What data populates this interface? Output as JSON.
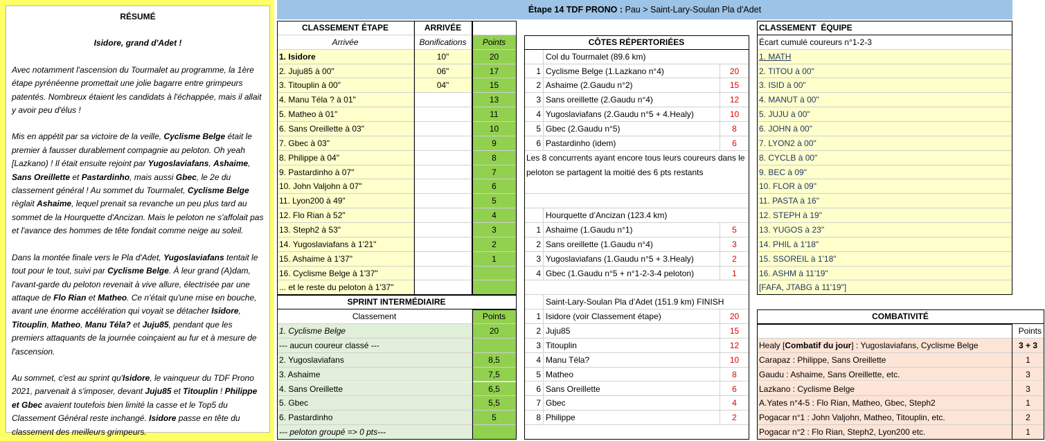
{
  "summary": {
    "title": "RÉSUMÉ",
    "subtitle": "Isidore, grand d'Adet !",
    "paragraphs": [
      [
        "Avec notamment l'ascension du Tourmalet au programme, la 1ère étape pyrénéenne promettait une jolie bagarre entre grimpeurs patentés. Nombreux étaient les candidats à l'échappée, mais il allait y avoir peu d'élus !"
      ],
      [
        "Mis en appétit par sa victoire de la veille,  ",
        {
          "b": "Cyclisme Belge"
        },
        " était le premier à fausser durablement compagnie au peloton. Oh yeah [Lazkano) ! Il était ensuite rejoint par ",
        {
          "b": "Yugoslaviafans"
        },
        ", ",
        {
          "b": "Ashaime"
        },
        ", ",
        {
          "b": "Sans Oreillette"
        },
        " et ",
        {
          "b": "Pastardinho"
        },
        ", mais aussi ",
        {
          "b": "Gbec"
        },
        ", le 2e du classement général ! Au sommet du Tourmalet,  ",
        {
          "b": "Cyclisme Belge"
        },
        " règlait ",
        {
          "b": "Ashaime"
        },
        ", lequel prenait sa revanche un peu plus tard au sommet de la Hourquette d'Ancizan. Mais le peloton ne s'affolait pas et l'avance des hommes de tête fondait comme neige au soleil."
      ],
      [
        "Dans la montée finale vers le Pla d'Adet, ",
        {
          "b": "Yugoslaviafans"
        },
        " tentait le tout pour le tout, suivi par ",
        {
          "b": "Cyclisme Belge"
        },
        ". À leur grand (A)dam, l'avant-garde du peloton revenait à vive allure, électrisée par une attaque de ",
        {
          "b": "Flo Rian"
        },
        " et ",
        {
          "b": "Matheo"
        },
        ". Ce n'était qu'une mise en bouche, avant une énorme accélération qui voyait se détacher ",
        {
          "b": "Isidore"
        },
        ", ",
        {
          "b": "Titouplin"
        },
        ", ",
        {
          "b": "Matheo"
        },
        ", ",
        {
          "b": "Manu Téla?"
        },
        " et ",
        {
          "b": "Juju85"
        },
        ", pendant que les premiers attaquants de la journée coinçaient au fur et à mesure de l'ascension."
      ],
      [
        "Au sommet, c'est au sprint qu'",
        {
          "b": "Isidore"
        },
        ", le vainqueur du TDF Prono 2021, parvenait à s'imposer, devant ",
        {
          "b": "Juju85"
        },
        " et ",
        {
          "b": "Titouplin"
        },
        " ! ",
        {
          "b": "Philippe et Gbec"
        },
        " avaient toutefois bien limité la casse et le Top5 du Classement Général reste inchangé. ",
        {
          "b": "Isidore"
        },
        " passe en tête du classement des meilleurs grimpeurs."
      ]
    ]
  },
  "header": {
    "label": "Étape 14 TDF PRONO : ",
    "route": "Pau > Saint-Lary-Soulan Pla d'Adet"
  },
  "stage": {
    "title": "CLASSEMENT ÉTAPE",
    "title2": "ARRIVÉE",
    "columns": [
      "Arrivée",
      "Bonifications",
      "Points"
    ],
    "rows": [
      {
        "name": "1. Isidore",
        "bonus": "10\"",
        "points": 20
      },
      {
        "name": "2. Juju85 à 00\"",
        "bonus": "06\"",
        "points": 17
      },
      {
        "name": "3. Titouplin à 00\"",
        "bonus": "04\"",
        "points": 15
      },
      {
        "name": "4. Manu Téla ? à 01\"",
        "points": 13
      },
      {
        "name": "5. Matheo à 01\"",
        "points": 11
      },
      {
        "name": "6. Sans Oreillette à 03\"",
        "points": 10
      },
      {
        "name": "7. Gbec à 03\"",
        "points": 9
      },
      {
        "name": "8. Philippe à 04\"",
        "points": 8
      },
      {
        "name": "9. Pastardinho à 07\"",
        "points": 7
      },
      {
        "name": "10. John Valjohn à 07\"",
        "points": 6
      },
      {
        "name": "11. Lyon200 à 49\"",
        "points": 5
      },
      {
        "name": "12. Flo Rian à 52\"",
        "points": 4
      },
      {
        "name": "13. Steph2 à 53\"",
        "points": 3
      },
      {
        "name": "14. Yugoslaviafans à 1'21\"",
        "points": 2
      },
      {
        "name": "15. Ashaime à 1'37\"",
        "points": 1
      },
      {
        "name": "16. Cyclisme Belge à 1'37\""
      },
      {
        "name": "... et le reste du peloton à 1'37\""
      }
    ]
  },
  "sprint": {
    "title": "SPRINT INTERMÉDIAIRE",
    "columns": [
      "Classement",
      "Points"
    ],
    "rows": [
      {
        "name": "1. Cyclisme Belge",
        "points": 20
      },
      {
        "name": "--- aucun coureur classé ---"
      },
      {
        "name": "2. Yugoslaviafans",
        "points": "8,5"
      },
      {
        "name": "3. Ashaime",
        "points": "7,5"
      },
      {
        "name": "4. Sans Oreillette",
        "points": "6,5"
      },
      {
        "name": "5. Gbec",
        "points": "5,5"
      },
      {
        "name": "6. Pastardinho",
        "points": 5
      },
      {
        "name": "--- peloton groupé => 0 pts---"
      }
    ]
  },
  "climbs": {
    "title": "CÔTES RÉPERTORIÉES",
    "note": "Les 8 concurrents ayant encore tous leurs coureurs dans le peloton se partagent la moitié des 6 pts restants",
    "sections": [
      {
        "name": "Col du Tourmalet (89.6 km)",
        "rows": [
          [
            1,
            "Cyclisme Belge (1.Lazkano n°4)",
            20
          ],
          [
            2,
            "Ashaime (2.Gaudu n°2)",
            15
          ],
          [
            3,
            "Sans oreillette (2.Gaudu n°4)",
            12
          ],
          [
            4,
            "Yugoslaviafans (2.Gaudu n°5 + 4.Healy)",
            10
          ],
          [
            5,
            "Gbec (2.Gaudu n°5)",
            8
          ],
          [
            6,
            "Pastardinho (idem)",
            6
          ]
        ]
      },
      {
        "name": "Hourquette d’Ancizan (123.4 km)",
        "rows": [
          [
            1,
            "Ashaime (1.Gaudu n°1)",
            5
          ],
          [
            2,
            "Sans oreillette (1.Gaudu n°4)",
            3
          ],
          [
            3,
            "Yugoslaviafans (1.Gaudu n°5 + 3.Healy)",
            2
          ],
          [
            4,
            "Gbec (1.Gaudu n°5 + n°1-2-3-4 peloton)",
            1
          ]
        ]
      },
      {
        "name": "Saint-Lary-Soulan Pla d’Adet (151.9 km) FINISH",
        "rows": [
          [
            1,
            "Isidore (voir Classement étape)",
            20
          ],
          [
            2,
            "Juju85",
            15
          ],
          [
            3,
            "Titouplin",
            12
          ],
          [
            4,
            "Manu Téla?",
            10
          ],
          [
            5,
            "Matheo",
            8
          ],
          [
            6,
            "Sans Oreillette",
            6
          ],
          [
            7,
            "Gbec",
            4
          ],
          [
            8,
            "Philippe",
            2
          ]
        ]
      }
    ]
  },
  "team": {
    "title": "CLASSEMENT  ÉQUIPE",
    "subtitle": "Écart cumulé coureurs n°1-2-3",
    "rows": [
      "1. MATH",
      "2. TITOU à 00\"",
      "3. ISID à 00\"",
      "4. MANUT à 00\"",
      "5. JUJU à 00\"",
      "6. JOHN à 00\"",
      "7. LYON2 à 00\"",
      "8. CYCLB à 00\"",
      "9. BEC à 09\"",
      "10. FLOR à 09\"",
      "11. PASTA à 16\"",
      "12. STEPH à 19\"",
      "13. YUGOS à 23\"",
      "14. PHIL à 1'18\"",
      "15. SSOREIL à 1'18\"",
      "16. ASHM à 11'19\"",
      "[FAFA, JTABG à 11'19\"]"
    ]
  },
  "combativity": {
    "title": "COMBATIVITÉ",
    "points_header": "Points",
    "rows": [
      {
        "label": [
          "Healy [",
          {
            "b": "Combatif du jour"
          },
          "] : Yugoslaviafans, Cyclisme Belge"
        ],
        "points": "3 + 3"
      },
      {
        "label": "Carapaz : Philippe, Sans Oreillette",
        "points": 1
      },
      {
        "label": "Gaudu : Ashaime, Sans Oreillette, etc.",
        "points": 3
      },
      {
        "label": "Lazkano : Cyclisme Belge",
        "points": 3
      },
      {
        "label": "A.Yates n°4-5 : Flo Rian, Matheo, Gbec, Steph2",
        "points": 1
      },
      {
        "label": "Pogacar n°1 : John Valjohn, Matheo, Titouplin, etc.",
        "points": 2
      },
      {
        "label": "Pogacar n°2 : Flo Rian, Steph2, Lyon200 etc.",
        "points": 1
      }
    ]
  }
}
